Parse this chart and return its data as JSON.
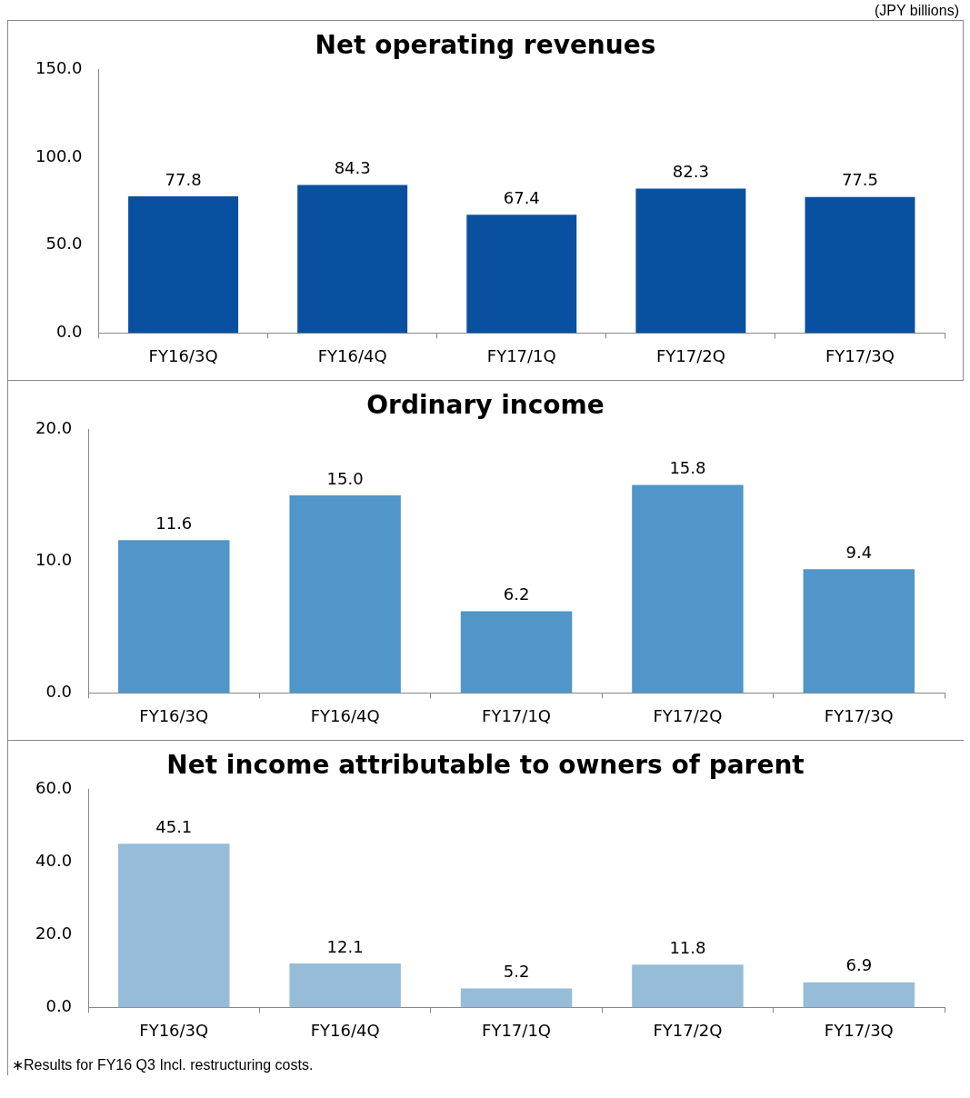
{
  "chart_data": [
    {
      "type": "bar",
      "title": "Net operating revenues",
      "categories": [
        "FY16/3Q",
        "FY16/4Q",
        "FY17/1Q",
        "FY17/2Q",
        "FY17/3Q"
      ],
      "values": [
        77.8,
        84.3,
        67.4,
        82.3,
        77.5
      ],
      "value_labels": [
        "77.8",
        "84.3",
        "67.4",
        "82.3",
        "77.5"
      ],
      "color": "#0a50a0",
      "ylim": [
        0,
        150
      ],
      "yticks": [
        {
          "value": 0,
          "label": "0.0"
        },
        {
          "value": 50,
          "label": "50.0"
        },
        {
          "value": 100,
          "label": "100.0"
        },
        {
          "value": 150,
          "label": "150.0"
        }
      ],
      "grid": false,
      "legend": false,
      "annotations": [
        "(JPY billions)"
      ]
    },
    {
      "type": "bar",
      "title": "Ordinary income",
      "categories": [
        "FY16/3Q",
        "FY16/4Q",
        "FY17/1Q",
        "FY17/2Q",
        "FY17/3Q"
      ],
      "values": [
        11.6,
        15.0,
        6.2,
        15.8,
        9.4
      ],
      "value_labels": [
        "11.6",
        "15.0",
        "6.2",
        "15.8",
        "9.4"
      ],
      "color": "#5096c8",
      "ylim": [
        0,
        20
      ],
      "yticks": [
        {
          "value": 0,
          "label": "0.0"
        },
        {
          "value": 10,
          "label": "10.0"
        },
        {
          "value": 20,
          "label": "20.0"
        }
      ],
      "grid": false,
      "legend": false
    },
    {
      "type": "bar",
      "title": "Net income attributable to owners of parent",
      "categories": [
        "FY16/3Q",
        "FY16/4Q",
        "FY17/1Q",
        "FY17/2Q",
        "FY17/3Q"
      ],
      "values": [
        45.1,
        12.1,
        5.2,
        11.8,
        6.9
      ],
      "value_labels": [
        "45.1",
        "12.1",
        "5.2",
        "11.8",
        "6.9"
      ],
      "color": "#96bcd8",
      "ylim": [
        0,
        60
      ],
      "yticks": [
        {
          "value": 0,
          "label": "0.0"
        },
        {
          "value": 20,
          "label": "20.0"
        },
        {
          "value": 40,
          "label": "40.0"
        },
        {
          "value": 60,
          "label": "60.0"
        }
      ],
      "grid": false,
      "legend": false,
      "annotations": [
        "∗Results for FY16 Q3 Incl. restructuring costs."
      ]
    }
  ]
}
